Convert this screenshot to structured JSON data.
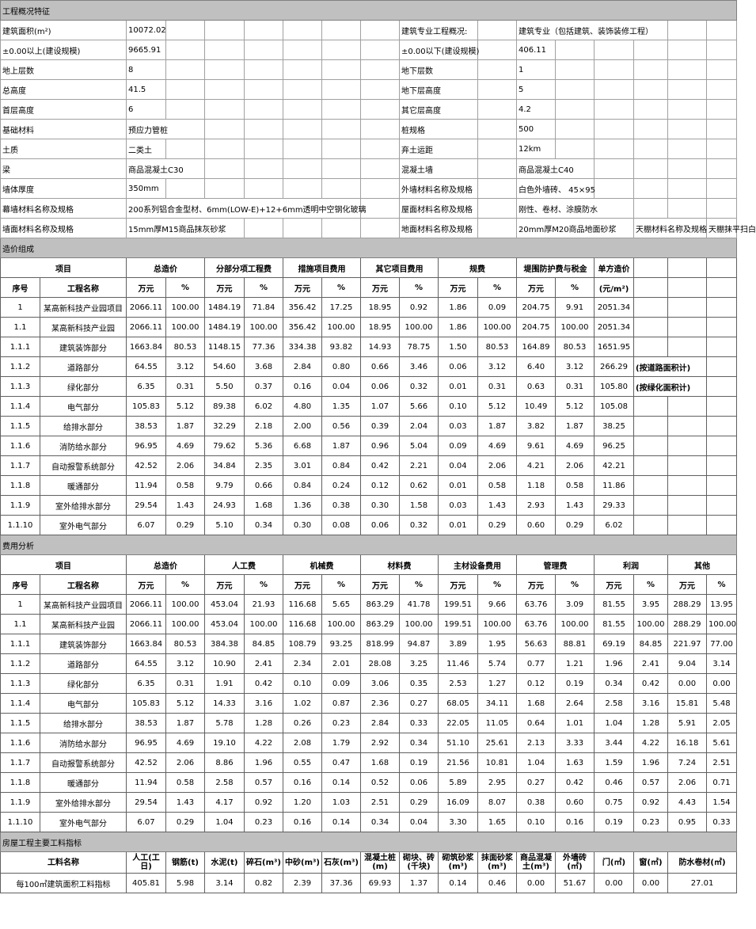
{
  "overview": {
    "title": "工程概况特征",
    "rows": [
      [
        "建筑面积(m²)",
        "10072.02",
        "建筑专业工程概况:",
        "建筑专业（包括建筑、装饰装修工程）"
      ],
      [
        "±0.00以上(建设规模)",
        "9665.91",
        "±0.00以下(建设规模)",
        "406.11"
      ],
      [
        "地上层数",
        "8",
        "地下层数",
        "1"
      ],
      [
        "总高度",
        "41.5",
        "地下层高度",
        "5"
      ],
      [
        "首层高度",
        "6",
        "其它层高度",
        "4.2"
      ],
      [
        "基础材料",
        "预应力管桩",
        "桩规格",
        "500"
      ],
      [
        "土质",
        "二类土",
        "弃土运距",
        "12km"
      ],
      [
        "梁",
        "商品混凝土C30",
        "混凝土墙",
        "商品混凝土C40"
      ],
      [
        "墙体厚度",
        "350mm",
        "外墙材料名称及规格",
        "白色外墙砖、 45×95"
      ],
      [
        "幕墙材料名称及规格",
        "200系列铝合金型材、6mm(LOW-E)+12+6mm透明中空钢化玻璃",
        "屋面材料名称及规格",
        "刚性、卷材、涂膜防水"
      ],
      [
        "墙面材料名称及规格",
        "15mm厚M15商品抹灰砂浆",
        "地面材料名称及规格",
        "20mm厚M20商品地面砂浆",
        "天棚材料名称及规格",
        "天棚抹平扫白"
      ]
    ]
  },
  "cost_composition": {
    "title": "造价组成",
    "group_headers": [
      "项目",
      "总造价",
      "分部分项工程费",
      "措施项目费用",
      "其它项目费用",
      "规费",
      "堤围防护费与税金",
      "单方造价"
    ],
    "sub_headers": [
      "序号",
      "工程名称",
      "万元",
      "%",
      "万元",
      "%",
      "万元",
      "%",
      "万元",
      "%",
      "万元",
      "%",
      "万元",
      "%",
      "(元/m²)"
    ],
    "rows": [
      [
        "1",
        "某高新科技产业园项目",
        "2066.11",
        "100.00",
        "1484.19",
        "71.84",
        "356.42",
        "17.25",
        "18.95",
        "0.92",
        "1.86",
        "0.09",
        "204.75",
        "9.91",
        "2051.34",
        ""
      ],
      [
        "1.1",
        "某高新科技产业园",
        "2066.11",
        "100.00",
        "1484.19",
        "100.00",
        "356.42",
        "100.00",
        "18.95",
        "100.00",
        "1.86",
        "100.00",
        "204.75",
        "100.00",
        "2051.34",
        ""
      ],
      [
        "1.1.1",
        "建筑装饰部分",
        "1663.84",
        "80.53",
        "1148.15",
        "77.36",
        "334.38",
        "93.82",
        "14.93",
        "78.75",
        "1.50",
        "80.53",
        "164.89",
        "80.53",
        "1651.95",
        ""
      ],
      [
        "1.1.2",
        "道路部分",
        "64.55",
        "3.12",
        "54.60",
        "3.68",
        "2.84",
        "0.80",
        "0.66",
        "3.46",
        "0.06",
        "3.12",
        "6.40",
        "3.12",
        "266.29",
        "(按道路面积计)"
      ],
      [
        "1.1.3",
        "绿化部分",
        "6.35",
        "0.31",
        "5.50",
        "0.37",
        "0.16",
        "0.04",
        "0.06",
        "0.32",
        "0.01",
        "0.31",
        "0.63",
        "0.31",
        "105.80",
        "(按绿化面积计)"
      ],
      [
        "1.1.4",
        "电气部分",
        "105.83",
        "5.12",
        "89.38",
        "6.02",
        "4.80",
        "1.35",
        "1.07",
        "5.66",
        "0.10",
        "5.12",
        "10.49",
        "5.12",
        "105.08",
        ""
      ],
      [
        "1.1.5",
        "给排水部分",
        "38.53",
        "1.87",
        "32.29",
        "2.18",
        "2.00",
        "0.56",
        "0.39",
        "2.04",
        "0.03",
        "1.87",
        "3.82",
        "1.87",
        "38.25",
        ""
      ],
      [
        "1.1.6",
        "消防给水部分",
        "96.95",
        "4.69",
        "79.62",
        "5.36",
        "6.68",
        "1.87",
        "0.96",
        "5.04",
        "0.09",
        "4.69",
        "9.61",
        "4.69",
        "96.25",
        ""
      ],
      [
        "1.1.7",
        "自动报警系统部分",
        "42.52",
        "2.06",
        "34.84",
        "2.35",
        "3.01",
        "0.84",
        "0.42",
        "2.21",
        "0.04",
        "2.06",
        "4.21",
        "2.06",
        "42.21",
        ""
      ],
      [
        "1.1.8",
        "暖通部分",
        "11.94",
        "0.58",
        "9.79",
        "0.66",
        "0.84",
        "0.24",
        "0.12",
        "0.62",
        "0.01",
        "0.58",
        "1.18",
        "0.58",
        "11.86",
        ""
      ],
      [
        "1.1.9",
        "室外给排水部分",
        "29.54",
        "1.43",
        "24.93",
        "1.68",
        "1.36",
        "0.38",
        "0.30",
        "1.58",
        "0.03",
        "1.43",
        "2.93",
        "1.43",
        "29.33",
        ""
      ],
      [
        "1.1.10",
        "室外电气部分",
        "6.07",
        "0.29",
        "5.10",
        "0.34",
        "0.30",
        "0.08",
        "0.06",
        "0.32",
        "0.01",
        "0.29",
        "0.60",
        "0.29",
        "6.02",
        ""
      ]
    ]
  },
  "cost_analysis": {
    "title": "费用分析",
    "group_headers": [
      "项目",
      "总造价",
      "人工费",
      "机械费",
      "材料费",
      "主材设备费用",
      "管理费",
      "利润",
      "其他"
    ],
    "sub_headers": [
      "序号",
      "工程名称",
      "万元",
      "%",
      "万元",
      "%",
      "万元",
      "%",
      "万元",
      "%",
      "万元",
      "%",
      "万元",
      "%",
      "万元",
      "%",
      "万元",
      "%"
    ],
    "rows": [
      [
        "1",
        "某高新科技产业园项目",
        "2066.11",
        "100.00",
        "453.04",
        "21.93",
        "116.68",
        "5.65",
        "863.29",
        "41.78",
        "199.51",
        "9.66",
        "63.76",
        "3.09",
        "81.55",
        "3.95",
        "288.29",
        "13.95"
      ],
      [
        "1.1",
        "某高新科技产业园",
        "2066.11",
        "100.00",
        "453.04",
        "100.00",
        "116.68",
        "100.00",
        "863.29",
        "100.00",
        "199.51",
        "100.00",
        "63.76",
        "100.00",
        "81.55",
        "100.00",
        "288.29",
        "100.00"
      ],
      [
        "1.1.1",
        "建筑装饰部分",
        "1663.84",
        "80.53",
        "384.38",
        "84.85",
        "108.79",
        "93.25",
        "818.99",
        "94.87",
        "3.89",
        "1.95",
        "56.63",
        "88.81",
        "69.19",
        "84.85",
        "221.97",
        "77.00"
      ],
      [
        "1.1.2",
        "道路部分",
        "64.55",
        "3.12",
        "10.90",
        "2.41",
        "2.34",
        "2.01",
        "28.08",
        "3.25",
        "11.46",
        "5.74",
        "0.77",
        "1.21",
        "1.96",
        "2.41",
        "9.04",
        "3.14"
      ],
      [
        "1.1.3",
        "绿化部分",
        "6.35",
        "0.31",
        "1.91",
        "0.42",
        "0.10",
        "0.09",
        "3.06",
        "0.35",
        "2.53",
        "1.27",
        "0.12",
        "0.19",
        "0.34",
        "0.42",
        "0.00",
        "0.00"
      ],
      [
        "1.1.4",
        "电气部分",
        "105.83",
        "5.12",
        "14.33",
        "3.16",
        "1.02",
        "0.87",
        "2.36",
        "0.27",
        "68.05",
        "34.11",
        "1.68",
        "2.64",
        "2.58",
        "3.16",
        "15.81",
        "5.48"
      ],
      [
        "1.1.5",
        "给排水部分",
        "38.53",
        "1.87",
        "5.78",
        "1.28",
        "0.26",
        "0.23",
        "2.84",
        "0.33",
        "22.05",
        "11.05",
        "0.64",
        "1.01",
        "1.04",
        "1.28",
        "5.91",
        "2.05"
      ],
      [
        "1.1.6",
        "消防给水部分",
        "96.95",
        "4.69",
        "19.10",
        "4.22",
        "2.08",
        "1.79",
        "2.92",
        "0.34",
        "51.10",
        "25.61",
        "2.13",
        "3.33",
        "3.44",
        "4.22",
        "16.18",
        "5.61"
      ],
      [
        "1.1.7",
        "自动报警系统部分",
        "42.52",
        "2.06",
        "8.86",
        "1.96",
        "0.55",
        "0.47",
        "1.68",
        "0.19",
        "21.56",
        "10.81",
        "1.04",
        "1.63",
        "1.59",
        "1.96",
        "7.24",
        "2.51"
      ],
      [
        "1.1.8",
        "暖通部分",
        "11.94",
        "0.58",
        "2.58",
        "0.57",
        "0.16",
        "0.14",
        "0.52",
        "0.06",
        "5.89",
        "2.95",
        "0.27",
        "0.42",
        "0.46",
        "0.57",
        "2.06",
        "0.71"
      ],
      [
        "1.1.9",
        "室外给排水部分",
        "29.54",
        "1.43",
        "4.17",
        "0.92",
        "1.20",
        "1.03",
        "2.51",
        "0.29",
        "16.09",
        "8.07",
        "0.38",
        "0.60",
        "0.75",
        "0.92",
        "4.43",
        "1.54"
      ],
      [
        "1.1.10",
        "室外电气部分",
        "6.07",
        "0.29",
        "1.04",
        "0.23",
        "0.16",
        "0.14",
        "0.34",
        "0.04",
        "3.30",
        "1.65",
        "0.10",
        "0.16",
        "0.19",
        "0.23",
        "0.95",
        "0.33"
      ]
    ]
  },
  "materials": {
    "title": "房屋工程主要工料指标",
    "headers": [
      "工料名称",
      "人工(工日)",
      "钢筋(t)",
      "水泥(t)",
      "碎石(m³)",
      "中砂(m³)",
      "石灰(m³)",
      "混凝土桩(m)",
      "砌块、砖(千块)",
      "砌筑砂浆(m³)",
      "抹面砂浆(m³)",
      "商品混凝土(m³)",
      "外墙砖(㎡)",
      "门(㎡)",
      "窗(㎡)",
      "防水卷材(㎡)"
    ],
    "row": [
      "每100㎡建筑面积工料指标",
      "405.81",
      "5.98",
      "3.14",
      "0.82",
      "2.39",
      "37.36",
      "69.93",
      "1.37",
      "0.14",
      "0.46",
      "0.00",
      "51.67",
      "0.00",
      "0.00",
      "27.01"
    ]
  }
}
